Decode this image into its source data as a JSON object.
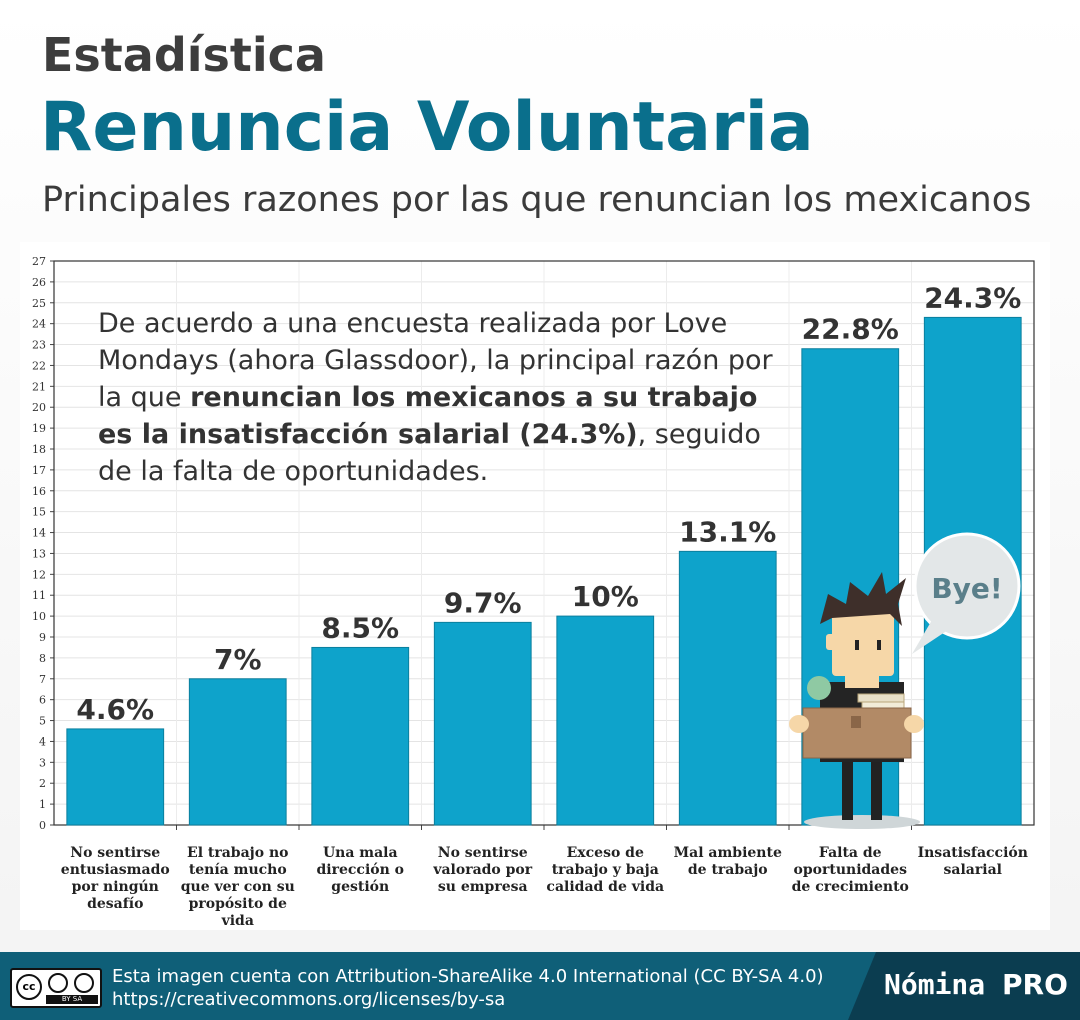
{
  "header": {
    "kicker": "Estadística",
    "title": "Renuncia Voluntaria",
    "subtitle": "Principales razones por las que renuncian los mexicanos"
  },
  "callout": {
    "part1": "De acuerdo a una encuesta realizada por Love Mondays (ahora Glassdoor), la principal razón por la que ",
    "bold": "renuncian los mexicanos a su trabajo es la insatisfacción salarial (24.3%)",
    "part2": ", seguido de la falta de oportunidades."
  },
  "illustration": {
    "speech_bubble": "Bye!"
  },
  "colors": {
    "bar": "#0ea3cb",
    "title": "#0a6f8c",
    "footer": "#0f5f78",
    "footer_dark": "#0b3d50"
  },
  "chart_data": {
    "type": "bar",
    "categories": [
      [
        "No sentirse",
        "entusiasmado",
        "por ningún",
        "desafío"
      ],
      [
        "El trabajo no",
        "tenía mucho",
        "que ver con su",
        "propósito de",
        "vida"
      ],
      [
        "Una mala",
        "dirección o",
        "gestión"
      ],
      [
        "No sentirse",
        "valorado por",
        "su empresa"
      ],
      [
        "Exceso de",
        "trabajo y baja",
        "calidad de vida"
      ],
      [
        "Mal ambiente",
        "de trabajo"
      ],
      [
        "Falta de",
        "oportunidades",
        "de crecimiento"
      ],
      [
        "Insatisfacción",
        "salarial"
      ]
    ],
    "values": [
      4.6,
      7,
      8.5,
      9.7,
      10,
      13.1,
      22.8,
      24.3
    ],
    "data_labels": [
      "4.6%",
      "7%",
      "8.5%",
      "9.7%",
      "10%",
      "13.1%",
      "22.8%",
      "24.3%"
    ],
    "ylim": [
      0,
      27
    ],
    "yticks": [
      "0",
      "1",
      "2",
      "3",
      "4",
      "5",
      "6",
      "7",
      "8",
      "9",
      "10",
      "11",
      "12",
      "13",
      "14",
      "15",
      "16",
      "17",
      "18",
      "19",
      "20",
      "21",
      "22",
      "23",
      "24",
      "25",
      "26",
      "27"
    ],
    "grid": true,
    "legend": "none"
  },
  "footer": {
    "cc_badge": "BY SA",
    "license_line1": "Esta imagen cuenta con Attribution-ShareAlike 4.0 International (CC BY-SA 4.0)",
    "license_line2": "https://creativecommons.org/licenses/by-sa",
    "brand_main": "Nómina",
    "brand_pro": "PRO"
  }
}
